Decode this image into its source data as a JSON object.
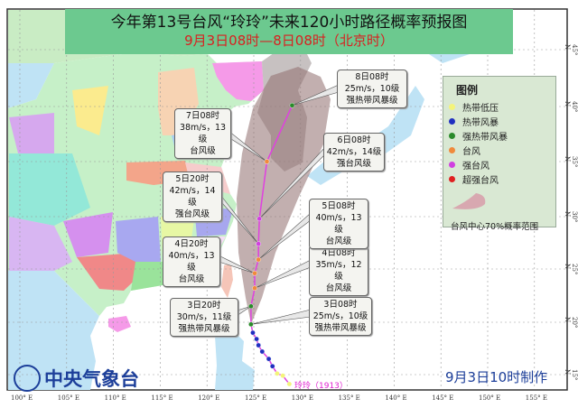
{
  "header": {
    "title": "今年第13号台风“玲玲”未来120小时路径概率预报图",
    "subtitle": "9月3日08时—8日08时（北京时）"
  },
  "colors": {
    "track_line": "#e040e0",
    "cone": "#8f6e6e",
    "sea": "#ffffff",
    "tropical_depression": "#f4f47a",
    "tropical_storm": "#2030c0",
    "severe_tropical_storm": "#2a8a2a",
    "typhoon": "#f08a3c",
    "severe_typhoon": "#d040e0",
    "super_typhoon": "#e02020"
  },
  "axes": {
    "lon_ticks": [
      "100° E",
      "105° E",
      "110° E",
      "115° E",
      "120° E",
      "125° E",
      "130° E",
      "135° E",
      "140° E",
      "145° E",
      "150° E",
      "155° E"
    ],
    "lon_values": [
      100,
      105,
      110,
      115,
      120,
      125,
      130,
      135,
      140,
      145,
      150,
      155
    ],
    "lat_ticks": [
      "45° N",
      "40° N",
      "35° N",
      "30° N",
      "25° N",
      "20° N",
      "15° N"
    ],
    "lat_values": [
      45,
      40,
      35,
      30,
      25,
      20,
      15
    ]
  },
  "past_track": [
    {
      "lon": 128.8,
      "lat": 14.1,
      "category": "tropical_depression"
    },
    {
      "lon": 128.1,
      "lat": 14.9,
      "category": "tropical_depression"
    },
    {
      "lon": 127.5,
      "lat": 15.1,
      "category": "tropical_depression"
    },
    {
      "lon": 127.0,
      "lat": 15.8,
      "category": "tropical_storm"
    },
    {
      "lon": 126.6,
      "lat": 16.5,
      "category": "tropical_storm"
    },
    {
      "lon": 125.9,
      "lat": 17.2,
      "category": "tropical_storm"
    },
    {
      "lon": 125.5,
      "lat": 17.8,
      "category": "tropical_storm"
    },
    {
      "lon": 125.3,
      "lat": 18.4,
      "category": "tropical_storm"
    },
    {
      "lon": 124.9,
      "lat": 19.0,
      "category": "tropical_storm"
    }
  ],
  "forecast": [
    {
      "time": "3日08时",
      "wind": "25m/s，10级",
      "level": "强热带风暴级",
      "lon": 124.7,
      "lat": 19.8,
      "category": "severe_tropical_storm"
    },
    {
      "time": "3日20时",
      "wind": "30m/s，11级",
      "level": "强热带风暴级",
      "lon": 124.7,
      "lat": 21.5,
      "category": "severe_tropical_storm"
    },
    {
      "time": "4日08时",
      "wind": "35m/s，12级",
      "level": "台风级",
      "lon": 125.1,
      "lat": 23.2,
      "category": "typhoon"
    },
    {
      "time": "4日20时",
      "wind": "40m/s，13级",
      "level": "台风级",
      "lon": 125.1,
      "lat": 24.6,
      "category": "typhoon"
    },
    {
      "time": "5日08时",
      "wind": "40m/s，13级",
      "level": "台风级",
      "lon": 125.5,
      "lat": 25.9,
      "category": "typhoon"
    },
    {
      "time": "5日20时",
      "wind": "42m/s，14级",
      "level": "强台风级",
      "lon": 125.5,
      "lat": 27.4,
      "category": "severe_typhoon"
    },
    {
      "time": "6日08时",
      "wind": "42m/s，14级",
      "level": "强台风级",
      "lon": 125.6,
      "lat": 29.8,
      "category": "severe_typhoon"
    },
    {
      "time": "7日08时",
      "wind": "38m/s，13级",
      "level": "台风级",
      "lon": 126.4,
      "lat": 35.0,
      "category": "typhoon"
    },
    {
      "time": "8日08时",
      "wind": "25m/s，10级",
      "level": "强热带风暴级",
      "lon": 129.1,
      "lat": 40.1,
      "category": "severe_tropical_storm"
    }
  ],
  "legend": {
    "title": "图例",
    "items": [
      {
        "label": "热带低压",
        "category": "tropical_depression"
      },
      {
        "label": "热带风暴",
        "category": "tropical_storm"
      },
      {
        "label": "强热带风暴",
        "category": "severe_tropical_storm"
      },
      {
        "label": "台风",
        "category": "typhoon"
      },
      {
        "label": "强台风",
        "category": "severe_typhoon"
      },
      {
        "label": "超强台风",
        "category": "super_typhoon"
      }
    ],
    "cone_label": "台风中心70%概率范围"
  },
  "typhoon_label": "玲玲（1913）",
  "footer": {
    "logo_text": "中央气象台",
    "issued": "9月3日10时制作"
  }
}
